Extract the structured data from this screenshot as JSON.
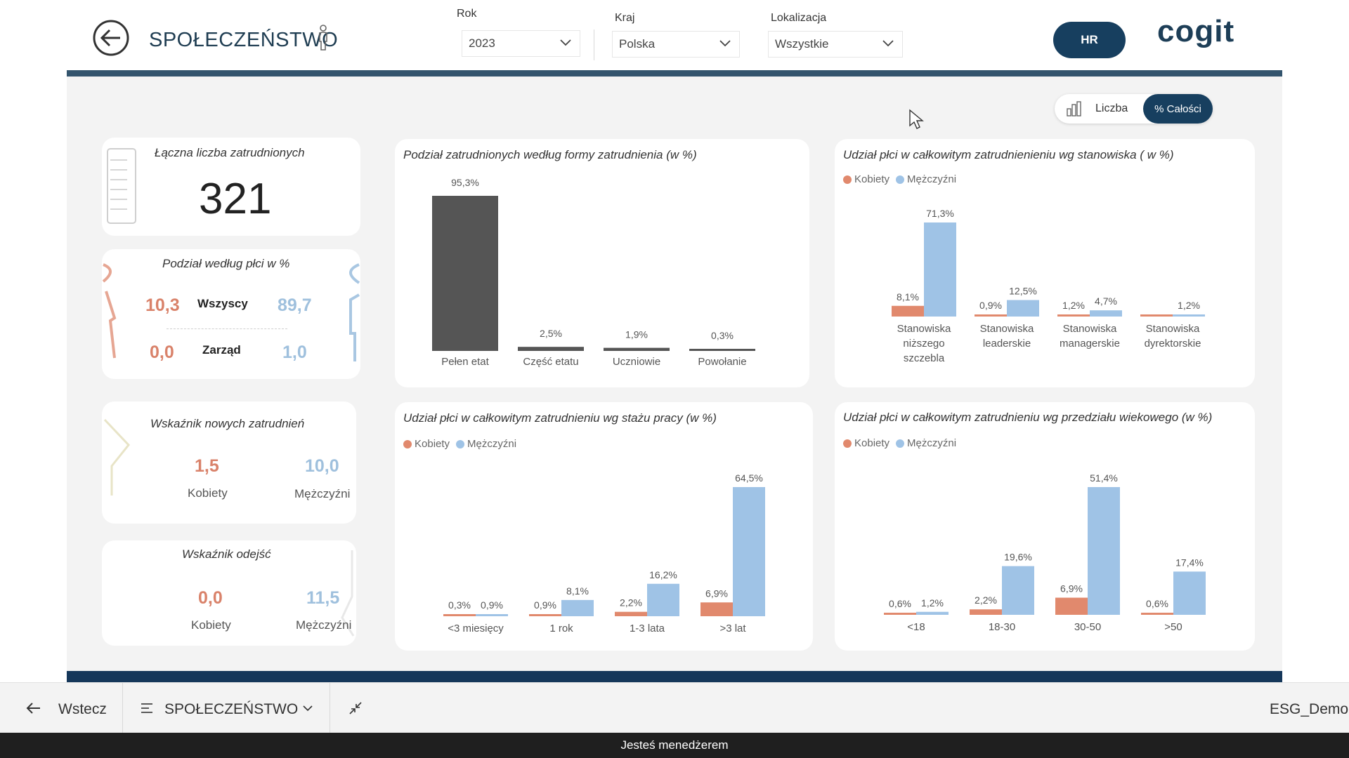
{
  "header": {
    "title": "SPOŁECZEŃSTWO",
    "hr_button": "HR",
    "logo": "cogit",
    "slicers": [
      {
        "label": "Rok",
        "value": "2023"
      },
      {
        "label": "Kraj",
        "value": "Polska"
      },
      {
        "label": "Lokalizacja",
        "value": "Wszystkie"
      }
    ]
  },
  "toggle": {
    "count_label": "Liczba",
    "percent_label": "% Całości"
  },
  "kpis": {
    "total": {
      "title": "Łączna liczba zatrudnionych",
      "value": "321"
    },
    "gender": {
      "title": "Podział według płci w %",
      "rows": [
        {
          "label": "Wszyscy",
          "female": "10,3",
          "male": "89,7"
        },
        {
          "label": "Zarząd",
          "female": "0,0",
          "male": "1,0"
        }
      ]
    },
    "new_hires": {
      "title": "Wskaźnik nowych zatrudnień",
      "female": "1,5",
      "male": "10,0",
      "female_label": "Kobiety",
      "male_label": "Mężczyźni"
    },
    "departures": {
      "title": "Wskaźnik odejść",
      "female": "0,0",
      "male": "11,5",
      "female_label": "Kobiety",
      "male_label": "Mężczyźni"
    }
  },
  "legend": {
    "female": "Kobiety",
    "male": "Mężczyźni"
  },
  "colors": {
    "female": "#e1896d",
    "male": "#9fc3e6",
    "dark_bar": "#555555",
    "accent": "#173f5f"
  },
  "chart_data": [
    {
      "type": "bar",
      "title": "Podział zatrudnionych według formy zatrudnienia (w %)",
      "categories": [
        "Pełen etat",
        "Część etatu",
        "Uczniowie",
        "Powołanie"
      ],
      "values": [
        95.3,
        2.5,
        1.9,
        0.3
      ],
      "labels": [
        "95,3%",
        "2,5%",
        "1,9%",
        "0,3%"
      ],
      "ylim": [
        0,
        95.3
      ],
      "grid": false
    },
    {
      "type": "bar",
      "title": "Udział płci w całkowitym zatrudnienieniu wg stanowiska ( w %)",
      "categories": [
        "Stanowiska niższego szczebla",
        "Stanowiska leaderskie",
        "Stanowiska managerskie",
        "Stanowiska dyrektorskie"
      ],
      "series": [
        {
          "name": "Kobiety",
          "values": [
            8.1,
            0.9,
            1.2,
            0.0
          ],
          "labels": [
            "8,1%",
            "0,9%",
            "1,2%",
            ""
          ]
        },
        {
          "name": "Mężczyźni",
          "values": [
            71.3,
            12.5,
            4.7,
            1.2
          ],
          "labels": [
            "71,3%",
            "12,5%",
            "4,7%",
            "1,2%"
          ]
        }
      ],
      "ylim": [
        0,
        71.3
      ],
      "legend": "top-left",
      "grid": false
    },
    {
      "type": "bar",
      "title": "Udział płci w całkowitym zatrudnieniu wg stażu pracy (w %)",
      "categories": [
        "<3 miesięcy",
        "1 rok",
        "1-3 lata",
        ">3 lat"
      ],
      "series": [
        {
          "name": "Kobiety",
          "values": [
            0.3,
            0.9,
            2.2,
            6.9
          ],
          "labels": [
            "0,3%",
            "0,9%",
            "2,2%",
            "6,9%"
          ]
        },
        {
          "name": "Mężczyźni",
          "values": [
            0.9,
            8.1,
            16.2,
            64.5
          ],
          "labels": [
            "0,9%",
            "8,1%",
            "16,2%",
            "64,5%"
          ]
        }
      ],
      "ylim": [
        0,
        64.5
      ],
      "legend": "top-left",
      "grid": false
    },
    {
      "type": "bar",
      "title": "Udział płci w całkowitym zatrudnieniu wg przedziału wiekowego (w %)",
      "categories": [
        "<18",
        "18-30",
        "30-50",
        ">50"
      ],
      "series": [
        {
          "name": "Kobiety",
          "values": [
            0.6,
            2.2,
            6.9,
            0.6
          ],
          "labels": [
            "0,6%",
            "2,2%",
            "6,9%",
            "0,6%"
          ]
        },
        {
          "name": "Mężczyźni",
          "values": [
            1.2,
            19.6,
            51.4,
            17.4
          ],
          "labels": [
            "1,2%",
            "19,6%",
            "51,4%",
            "17,4%"
          ]
        }
      ],
      "ylim": [
        0,
        51.4
      ],
      "legend": "top-left",
      "grid": false
    }
  ],
  "taskbar": {
    "back": "Wstecz",
    "page": "SPOŁECZEŃSTWO",
    "workspace": "ESG_Demo"
  },
  "status": "Jesteś menedżerem"
}
